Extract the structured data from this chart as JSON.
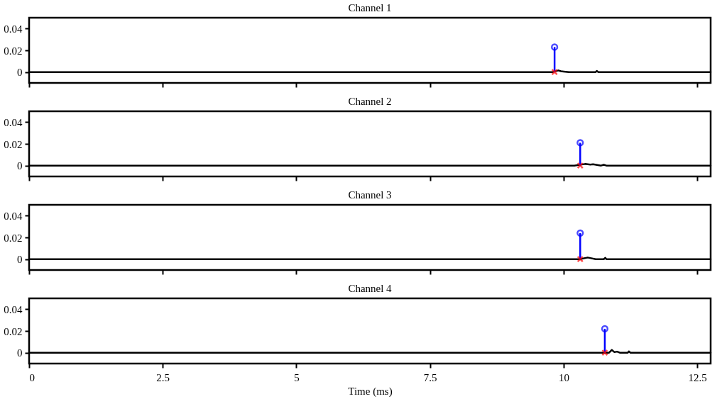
{
  "chart_data": [
    {
      "type": "line",
      "title": "Channel 1",
      "xlim": [
        0,
        12.75
      ],
      "xticks": [
        0,
        2.5,
        5,
        7.5,
        10,
        12.5
      ],
      "ylim": [
        -0.01,
        0.05
      ],
      "yticks": [
        0,
        0.02,
        0.04
      ],
      "grid": false,
      "tick_labels": "y",
      "series": [
        {
          "type": "line",
          "color": "#000000",
          "x": [
            0,
            9.8,
            9.9,
            9.95,
            10.0,
            10.1,
            10.6,
            10.62,
            10.65,
            12.75
          ],
          "values": [
            0,
            0,
            0.0015,
            0.0008,
            0.0005,
            0,
            0,
            0.001,
            0,
            0
          ]
        },
        {
          "type": "lollipop",
          "color": "#0000ff",
          "marker": "circle",
          "x": [
            9.83
          ],
          "values": [
            0.023
          ]
        },
        {
          "type": "scatter",
          "color": "#ff0000",
          "marker": "cross",
          "x": [
            9.83
          ],
          "values": [
            0
          ]
        }
      ]
    },
    {
      "type": "line",
      "title": "Channel 2",
      "xlim": [
        0,
        12.75
      ],
      "xticks": [
        0,
        2.5,
        5,
        7.5,
        10,
        12.5
      ],
      "ylim": [
        -0.01,
        0.05
      ],
      "yticks": [
        0,
        0.02,
        0.04
      ],
      "grid": false,
      "tick_labels": "y",
      "series": [
        {
          "type": "line",
          "color": "#000000",
          "x": [
            0,
            10.2,
            10.4,
            10.5,
            10.55,
            10.7,
            10.75,
            10.8,
            12.75
          ],
          "values": [
            0,
            0,
            0.0015,
            0.001,
            0.0012,
            0,
            0.0008,
            0,
            0
          ]
        },
        {
          "type": "lollipop",
          "color": "#0000ff",
          "marker": "circle",
          "x": [
            10.31
          ],
          "values": [
            0.021
          ]
        },
        {
          "type": "scatter",
          "color": "#ff0000",
          "marker": "cross",
          "x": [
            10.31
          ],
          "values": [
            0
          ]
        }
      ]
    },
    {
      "type": "line",
      "title": "Channel 3",
      "xlim": [
        0,
        12.75
      ],
      "xticks": [
        0,
        2.5,
        5,
        7.5,
        10,
        12.5
      ],
      "ylim": [
        -0.01,
        0.05
      ],
      "yticks": [
        0,
        0.02,
        0.04
      ],
      "grid": false,
      "tick_labels": "y",
      "series": [
        {
          "type": "line",
          "color": "#000000",
          "x": [
            0,
            10.3,
            10.45,
            10.5,
            10.6,
            10.75,
            10.78,
            10.8,
            12.75
          ],
          "values": [
            0,
            0,
            0.0015,
            0.001,
            0,
            0,
            0.0012,
            0,
            0
          ]
        },
        {
          "type": "lollipop",
          "color": "#0000ff",
          "marker": "circle",
          "x": [
            10.31
          ],
          "values": [
            0.024
          ]
        },
        {
          "type": "scatter",
          "color": "#ff0000",
          "marker": "cross",
          "x": [
            10.31
          ],
          "values": [
            0
          ]
        }
      ]
    },
    {
      "type": "line",
      "title": "Channel 4",
      "xlim": [
        0,
        12.75
      ],
      "xticks": [
        0,
        2.5,
        5,
        7.5,
        10,
        12.5
      ],
      "ylim": [
        -0.01,
        0.05
      ],
      "yticks": [
        0,
        0.02,
        0.04
      ],
      "grid": false,
      "xlabel": "Time (ms)",
      "series": [
        {
          "type": "line",
          "color": "#000000",
          "x": [
            0,
            10.85,
            10.9,
            10.95,
            11.0,
            11.05,
            11.2,
            11.22,
            11.25,
            12.75
          ],
          "values": [
            0,
            0,
            0.0025,
            0.0005,
            0.001,
            0,
            0,
            0.0012,
            0,
            0
          ]
        },
        {
          "type": "lollipop",
          "color": "#0000ff",
          "marker": "circle",
          "x": [
            10.77
          ],
          "values": [
            0.022
          ]
        },
        {
          "type": "scatter",
          "color": "#ff0000",
          "marker": "cross",
          "x": [
            10.77
          ],
          "values": [
            0
          ]
        }
      ]
    }
  ]
}
